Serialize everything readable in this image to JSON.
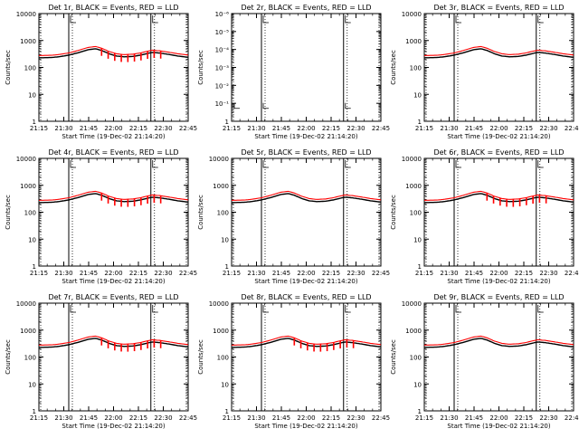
{
  "chart_data": [
    {
      "type": "line",
      "title": "Det 1r, BLACK = Events, RED = LLD",
      "xlabel": "Start Time (19-Dec-02 21:14:20)",
      "ylabel": "Counts/sec",
      "yscale": "log",
      "ylim": [
        1,
        10000
      ],
      "ytick_labels": [
        "1",
        "10",
        "100",
        "1000",
        "10000"
      ],
      "xlim": [
        0,
        100
      ],
      "xtick_labels": [
        "21:15",
        "21:30",
        "21:45",
        "22:00",
        "22:15",
        "22:30",
        "22:45"
      ],
      "series": [
        {
          "name": "Events",
          "color": "#000000",
          "profile": "standard"
        },
        {
          "name": "LLD",
          "color": "#ff0000",
          "profile": "standard"
        }
      ],
      "vlines": [
        20,
        75
      ],
      "spiky": true
    },
    {
      "type": "line",
      "title": "Det 2r, BLACK = Events, RED = LLD",
      "xlabel": "Start Time (19-Dec-02 21:14:20)",
      "ylabel": "Counts/sec",
      "yscale": "log",
      "ylim": [
        1,
        1e-06
      ],
      "ytick_labels": [
        "1",
        "10⁻¹",
        "10⁻²",
        "10⁻³",
        "10⁻⁴",
        "10⁻⁵",
        "10⁻⁶"
      ],
      "xlim": [
        0,
        100
      ],
      "xtick_labels": [
        "21:15",
        "21:30",
        "21:45",
        "22:00",
        "22:15",
        "22:30",
        "22:45"
      ],
      "series": [],
      "vlines": [
        20,
        75
      ],
      "spiky": false
    },
    {
      "type": "line",
      "title": "Det 3r, BLACK = Events, RED = LLD",
      "xlabel": "Start Time (19-Dec-02 21:14:20)",
      "ylabel": "Counts/sec",
      "yscale": "log",
      "ylim": [
        1,
        10000
      ],
      "ytick_labels": [
        "1",
        "10",
        "100",
        "1000",
        "10000"
      ],
      "xlim": [
        0,
        100
      ],
      "xtick_labels": [
        "21:15",
        "21:30",
        "21:45",
        "22:00",
        "22:15",
        "22:30",
        "22:45"
      ],
      "series": [
        {
          "name": "Events",
          "color": "#000000",
          "profile": "standard"
        },
        {
          "name": "LLD",
          "color": "#ff0000",
          "profile": "standard"
        }
      ],
      "vlines": [
        20,
        75
      ],
      "spiky": false
    },
    {
      "type": "line",
      "title": "Det 4r, BLACK = Events, RED = LLD",
      "xlabel": "Start Time (19-Dec-02 21:14:20)",
      "ylabel": "Counts/sec",
      "yscale": "log",
      "ylim": [
        1,
        10000
      ],
      "ytick_labels": [
        "1",
        "10",
        "100",
        "1000",
        "10000"
      ],
      "xlim": [
        0,
        100
      ],
      "xtick_labels": [
        "21:15",
        "21:30",
        "21:45",
        "22:00",
        "22:15",
        "22:30",
        "22:45"
      ],
      "series": [
        {
          "name": "Events",
          "color": "#000000",
          "profile": "standard"
        },
        {
          "name": "LLD",
          "color": "#ff0000",
          "profile": "standard"
        }
      ],
      "vlines": [
        20,
        75
      ],
      "spiky": true
    },
    {
      "type": "line",
      "title": "Det 5r, BLACK = Events, RED = LLD",
      "xlabel": "Start Time (19-Dec-02 21:14:20)",
      "ylabel": "Counts/sec",
      "yscale": "log",
      "ylim": [
        1,
        10000
      ],
      "ytick_labels": [
        "1",
        "10",
        "100",
        "1000",
        "10000"
      ],
      "xlim": [
        0,
        100
      ],
      "xtick_labels": [
        "21:15",
        "21:30",
        "21:45",
        "22:00",
        "22:15",
        "22:30",
        "22:45"
      ],
      "series": [
        {
          "name": "Events",
          "color": "#000000",
          "profile": "standard"
        },
        {
          "name": "LLD",
          "color": "#ff0000",
          "profile": "standard"
        }
      ],
      "vlines": [
        20,
        75
      ],
      "spiky": false
    },
    {
      "type": "line",
      "title": "Det 6r, BLACK = Events, RED = LLD",
      "xlabel": "Start Time (19-Dec-02 21:14:20)",
      "ylabel": "Counts/sec",
      "yscale": "log",
      "ylim": [
        1,
        10000
      ],
      "ytick_labels": [
        "1",
        "10",
        "100",
        "1000",
        "10000"
      ],
      "xlim": [
        0,
        100
      ],
      "xtick_labels": [
        "21:15",
        "21:30",
        "21:45",
        "22:00",
        "22:15",
        "22:30",
        "22:45"
      ],
      "series": [
        {
          "name": "Events",
          "color": "#000000",
          "profile": "standard"
        },
        {
          "name": "LLD",
          "color": "#ff0000",
          "profile": "standard"
        }
      ],
      "vlines": [
        20,
        75
      ],
      "spiky": true
    },
    {
      "type": "line",
      "title": "Det 7r, BLACK = Events, RED = LLD",
      "xlabel": "Start Time (19-Dec-02 21:14:20)",
      "ylabel": "Counts/sec",
      "yscale": "log",
      "ylim": [
        1,
        10000
      ],
      "ytick_labels": [
        "1",
        "10",
        "100",
        "1000",
        "10000"
      ],
      "xlim": [
        0,
        100
      ],
      "xtick_labels": [
        "21:15",
        "21:30",
        "21:45",
        "22:00",
        "22:15",
        "22:30",
        "22:45"
      ],
      "series": [
        {
          "name": "Events",
          "color": "#000000",
          "profile": "standard"
        },
        {
          "name": "LLD",
          "color": "#ff0000",
          "profile": "standard"
        }
      ],
      "vlines": [
        20,
        75
      ],
      "spiky": true
    },
    {
      "type": "line",
      "title": "Det 8r, BLACK = Events, RED = LLD",
      "xlabel": "Start Time (19-Dec-02 21:14:20)",
      "ylabel": "Counts/sec",
      "yscale": "log",
      "ylim": [
        1,
        10000
      ],
      "ytick_labels": [
        "1",
        "10",
        "100",
        "1000",
        "10000"
      ],
      "xlim": [
        0,
        100
      ],
      "xtick_labels": [
        "21:15",
        "21:30",
        "21:45",
        "22:00",
        "22:15",
        "22:30",
        "22:45"
      ],
      "series": [
        {
          "name": "Events",
          "color": "#000000",
          "profile": "standard"
        },
        {
          "name": "LLD",
          "color": "#ff0000",
          "profile": "standard"
        }
      ],
      "vlines": [
        20,
        75
      ],
      "spiky": true
    },
    {
      "type": "line",
      "title": "Det 9r, BLACK = Events, RED = LLD",
      "xlabel": "Start Time (19-Dec-02 21:14:20)",
      "ylabel": "Counts/sec",
      "yscale": "log",
      "ylim": [
        1,
        10000
      ],
      "ytick_labels": [
        "1",
        "10",
        "100",
        "1000",
        "10000"
      ],
      "xlim": [
        0,
        100
      ],
      "xtick_labels": [
        "21:15",
        "21:30",
        "21:45",
        "22:00",
        "22:15",
        "22:30",
        "22:45"
      ],
      "series": [
        {
          "name": "Events",
          "color": "#000000",
          "profile": "standard"
        },
        {
          "name": "LLD",
          "color": "#ff0000",
          "profile": "standard"
        }
      ],
      "vlines": [
        20,
        75
      ],
      "spiky": false
    }
  ]
}
